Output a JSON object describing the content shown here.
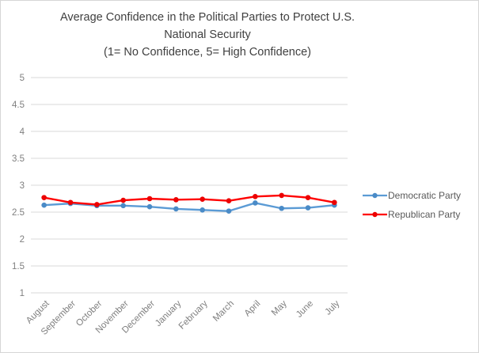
{
  "window": {
    "background_color": "#ffffff",
    "border_color": "#d6d6d6"
  },
  "chart_data": {
    "type": "line",
    "title": "Average Confidence in the Political Parties to Protect U.S. National Security (1= No Confidence, 5= High Confidence)",
    "title_lines": [
      "Average Confidence in the Political Parties to Protect U.S.",
      "National Security",
      "(1= No Confidence, 5= High Confidence)"
    ],
    "categories": [
      "August",
      "September",
      "October",
      "November",
      "December",
      "January",
      "February",
      "March",
      "April",
      "May",
      "June",
      "July"
    ],
    "series": [
      {
        "name": "Democratic Party",
        "color": "#5B9BD5",
        "marker_color": "#4a8bc7",
        "values": [
          2.63,
          2.66,
          2.62,
          2.62,
          2.6,
          2.56,
          2.54,
          2.52,
          2.67,
          2.57,
          2.58,
          2.63
        ]
      },
      {
        "name": "Republican Party",
        "color": "#FF0000",
        "marker_color": "#ec0000",
        "values": [
          2.77,
          2.68,
          2.64,
          2.72,
          2.75,
          2.73,
          2.74,
          2.71,
          2.79,
          2.81,
          2.77,
          2.68
        ]
      }
    ],
    "xlabel": "",
    "ylabel": "",
    "ylim": [
      1,
      5
    ],
    "ytick_labels": [
      "5",
      "4.5",
      "4",
      "3.5",
      "3",
      "2.5",
      "2",
      "1.5",
      "1"
    ],
    "grid": "horizontal",
    "gridline_color": "#d9d9d9",
    "axis_label_color": "#7f7f7f",
    "title_color": "#404040",
    "legend_text_color": "#595959",
    "legend_position": "right",
    "x_label_rotation_deg": -45
  }
}
